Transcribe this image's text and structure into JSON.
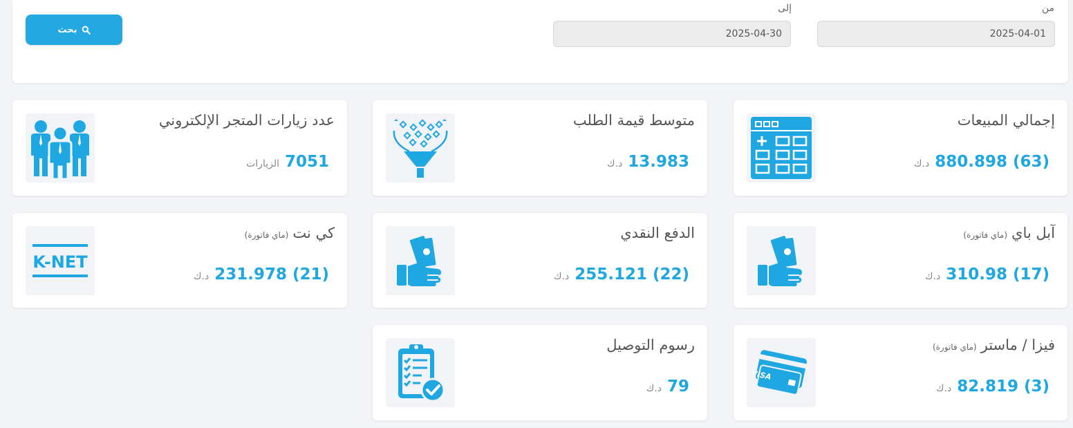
{
  "filter": {
    "from_label": "من",
    "from_value": "2025-04-01",
    "to_label": "إلى",
    "to_value": "2025-04-30",
    "search_label": "بحث"
  },
  "cards": [
    {
      "id": "total-sales",
      "title": "إجمالي المبيعات",
      "sub": "",
      "value": "880.898 (63)",
      "unit": "د.ك",
      "icon": "calculator-icon"
    },
    {
      "id": "avg-order",
      "title": "متوسط قيمة الطلب",
      "sub": "",
      "value": "13.983",
      "unit": "د.ك",
      "icon": "funnel-icon"
    },
    {
      "id": "store-visits",
      "title": "عدد زيارات المتجر الإلكتروني",
      "sub": "",
      "value": "7051",
      "unit": "الزيارات",
      "icon": "people-icon"
    },
    {
      "id": "apple-pay",
      "title": "آبل باي",
      "sub": "(ماي فاتورة)",
      "value": "310.98 (17)",
      "unit": "د.ك",
      "icon": "cash-hand-icon"
    },
    {
      "id": "cash-payment",
      "title": "الدفع النقدي",
      "sub": "",
      "value": "255.121 (22)",
      "unit": "د.ك",
      "icon": "cash-hand-icon"
    },
    {
      "id": "knet",
      "title": "كي نت",
      "sub": "(ماي فاتورة)",
      "value": "231.978 (21)",
      "unit": "د.ك",
      "icon": "knet-icon",
      "icon_text": "K-NET"
    },
    {
      "id": "visa-master",
      "title": "فيزا / ماستر",
      "sub": "(ماي فاتورة)",
      "value": "82.819 (3)",
      "unit": "د.ك",
      "icon": "credit-card-icon",
      "icon_text": "VISA"
    },
    {
      "id": "delivery-fees",
      "title": "رسوم التوصيل",
      "sub": "",
      "value": "79",
      "unit": "د.ك",
      "icon": "clipboard-check-icon"
    }
  ],
  "colors": {
    "accent": "#1fa7e1",
    "button": "#23a8e2",
    "card_bg": "#ffffff",
    "page_bg": "#f2f4f7"
  }
}
